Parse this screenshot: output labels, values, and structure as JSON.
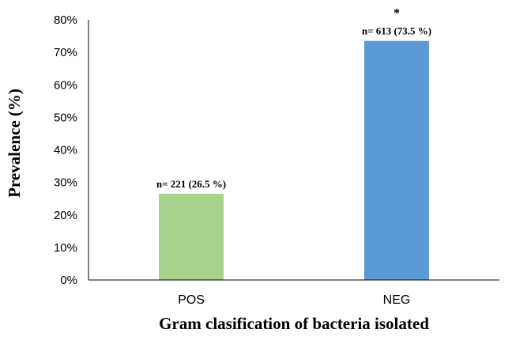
{
  "chart_data": {
    "type": "bar",
    "categories": [
      "POS",
      "NEG"
    ],
    "values": [
      26.5,
      73.5
    ],
    "data_labels": [
      "n= 221 (26.5 %)",
      "n= 613 (73.5 %)"
    ],
    "annotations": [
      "",
      "*"
    ],
    "colors": [
      "#a9d18e",
      "#5b9bd5"
    ],
    "ylim": [
      0,
      80
    ],
    "yticks": [
      0,
      10,
      20,
      30,
      40,
      50,
      60,
      70,
      80
    ],
    "ytick_labels": [
      "0%",
      "10%",
      "20%",
      "30%",
      "40%",
      "50%",
      "60%",
      "70%",
      "80%"
    ],
    "xlabel": "Gram clasification of bacteria isolated",
    "ylabel": "Prevalence (%)",
    "grid": false,
    "legend": "none"
  }
}
